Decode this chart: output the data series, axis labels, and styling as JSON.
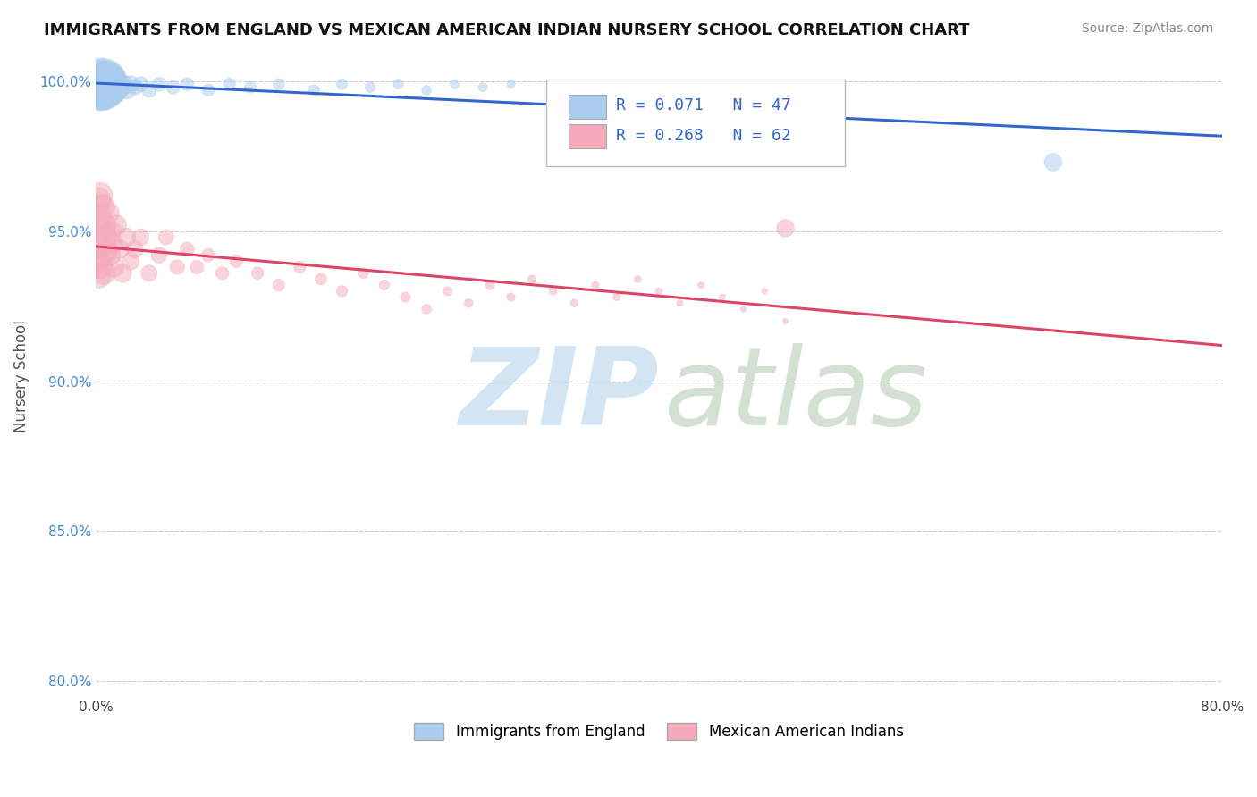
{
  "title": "IMMIGRANTS FROM ENGLAND VS MEXICAN AMERICAN INDIAN NURSERY SCHOOL CORRELATION CHART",
  "source": "Source: ZipAtlas.com",
  "ylabel": "Nursery School",
  "xlim": [
    0.0,
    0.8
  ],
  "ylim": [
    0.795,
    1.008
  ],
  "yticks": [
    0.8,
    0.85,
    0.9,
    0.95,
    1.0
  ],
  "ytick_labels": [
    "80.0%",
    "85.0%",
    "90.0%",
    "95.0%",
    "100.0%"
  ],
  "xticks": [
    0.0,
    0.1,
    0.2,
    0.3,
    0.4,
    0.5,
    0.6,
    0.7,
    0.8
  ],
  "xtick_labels": [
    "0.0%",
    "",
    "",
    "",
    "",
    "",
    "",
    "",
    "80.0%"
  ],
  "blue_R": 0.071,
  "blue_N": 47,
  "pink_R": 0.268,
  "pink_N": 62,
  "blue_color": "#aaccee",
  "pink_color": "#f4aabb",
  "blue_line_color": "#3366cc",
  "pink_line_color": "#dd4466",
  "legend_label_blue": "Immigrants from England",
  "legend_label_pink": "Mexican American Indians",
  "blue_scatter_x": [
    0.001,
    0.002,
    0.002,
    0.003,
    0.003,
    0.004,
    0.004,
    0.005,
    0.005,
    0.006,
    0.006,
    0.007,
    0.007,
    0.008,
    0.008,
    0.009,
    0.01,
    0.011,
    0.012,
    0.013,
    0.014,
    0.015,
    0.016,
    0.017,
    0.018,
    0.02,
    0.022,
    0.025,
    0.028,
    0.032,
    0.038,
    0.045,
    0.055,
    0.065,
    0.08,
    0.095,
    0.11,
    0.13,
    0.155,
    0.175,
    0.195,
    0.215,
    0.235,
    0.255,
    0.275,
    0.295,
    0.68
  ],
  "blue_scatter_y": [
    0.999,
    0.999,
    0.998,
    0.999,
    0.997,
    0.999,
    0.998,
    0.999,
    0.998,
    0.999,
    0.997,
    0.999,
    0.998,
    0.999,
    0.997,
    0.999,
    0.998,
    0.999,
    0.997,
    0.999,
    0.998,
    0.999,
    0.997,
    0.999,
    0.998,
    0.999,
    0.997,
    0.999,
    0.998,
    0.999,
    0.997,
    0.999,
    0.998,
    0.999,
    0.997,
    0.999,
    0.998,
    0.999,
    0.997,
    0.999,
    0.998,
    0.999,
    0.997,
    0.999,
    0.998,
    0.999,
    0.973
  ],
  "blue_scatter_sizes": [
    800,
    1200,
    900,
    1500,
    1100,
    1800,
    1300,
    1600,
    1000,
    1400,
    900,
    1200,
    800,
    1000,
    700,
    900,
    600,
    500,
    450,
    400,
    350,
    300,
    280,
    260,
    240,
    220,
    200,
    180,
    160,
    150,
    140,
    130,
    120,
    110,
    100,
    95,
    90,
    85,
    80,
    75,
    70,
    65,
    60,
    55,
    50,
    45,
    200
  ],
  "pink_scatter_x": [
    0.001,
    0.001,
    0.002,
    0.002,
    0.003,
    0.003,
    0.004,
    0.004,
    0.005,
    0.005,
    0.006,
    0.006,
    0.007,
    0.008,
    0.009,
    0.01,
    0.011,
    0.012,
    0.013,
    0.015,
    0.017,
    0.019,
    0.022,
    0.025,
    0.028,
    0.032,
    0.038,
    0.045,
    0.05,
    0.058,
    0.065,
    0.072,
    0.08,
    0.09,
    0.1,
    0.115,
    0.13,
    0.145,
    0.16,
    0.175,
    0.19,
    0.205,
    0.22,
    0.235,
    0.25,
    0.265,
    0.28,
    0.295,
    0.31,
    0.325,
    0.34,
    0.355,
    0.37,
    0.385,
    0.4,
    0.415,
    0.43,
    0.445,
    0.46,
    0.475,
    0.49,
    0.49
  ],
  "pink_scatter_y": [
    0.96,
    0.94,
    0.955,
    0.935,
    0.962,
    0.945,
    0.95,
    0.938,
    0.958,
    0.942,
    0.952,
    0.936,
    0.948,
    0.944,
    0.956,
    0.942,
    0.95,
    0.946,
    0.938,
    0.952,
    0.944,
    0.936,
    0.948,
    0.94,
    0.944,
    0.948,
    0.936,
    0.942,
    0.948,
    0.938,
    0.944,
    0.938,
    0.942,
    0.936,
    0.94,
    0.936,
    0.932,
    0.938,
    0.934,
    0.93,
    0.936,
    0.932,
    0.928,
    0.924,
    0.93,
    0.926,
    0.932,
    0.928,
    0.934,
    0.93,
    0.926,
    0.932,
    0.928,
    0.934,
    0.93,
    0.926,
    0.932,
    0.928,
    0.924,
    0.93,
    0.92,
    0.951
  ],
  "pink_scatter_sizes": [
    500,
    400,
    450,
    380,
    420,
    360,
    400,
    350,
    380,
    340,
    360,
    330,
    350,
    320,
    310,
    300,
    280,
    270,
    260,
    250,
    230,
    220,
    210,
    200,
    190,
    180,
    170,
    160,
    150,
    140,
    130,
    120,
    115,
    110,
    105,
    100,
    95,
    90,
    85,
    80,
    75,
    70,
    65,
    60,
    55,
    50,
    48,
    45,
    43,
    40,
    38,
    36,
    34,
    32,
    30,
    28,
    26,
    24,
    22,
    20,
    18,
    200
  ]
}
